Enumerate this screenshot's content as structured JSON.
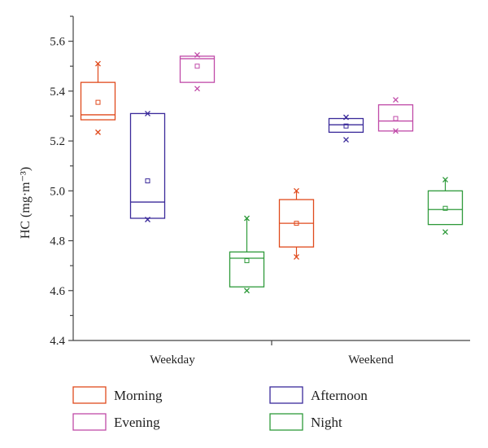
{
  "chart_data": {
    "type": "box",
    "ylabel": "HC (mg·m⁻³)",
    "ylim": [
      4.4,
      5.7
    ],
    "yticks": [
      "4.4",
      "4.6",
      "4.8",
      "5.0",
      "5.2",
      "5.4",
      "5.6"
    ],
    "categories": [
      "Weekday",
      "Weekend"
    ],
    "grid": false,
    "legend_position": "bottom",
    "series": [
      {
        "name": "Morning",
        "color": "#e04a1c",
        "boxes": [
          {
            "category": "Weekday",
            "q1": 5.285,
            "median": 5.305,
            "q3": 5.435,
            "mean": 5.355,
            "whisker_low": 5.285,
            "whisker_high": 5.51,
            "min": 5.235,
            "max": 5.51
          },
          {
            "category": "Weekend",
            "q1": 4.775,
            "median": 4.87,
            "q3": 4.965,
            "mean": 4.87,
            "whisker_low": 4.735,
            "whisker_high": 5.0,
            "min": 4.735,
            "max": 5.0
          }
        ]
      },
      {
        "name": "Afternoon",
        "color": "#3a2a9a",
        "boxes": [
          {
            "category": "Weekday",
            "q1": 4.89,
            "median": 4.955,
            "q3": 5.31,
            "mean": 5.04,
            "whisker_low": 4.89,
            "whisker_high": 5.31,
            "min": 4.885,
            "max": 5.31
          },
          {
            "category": "Weekend",
            "q1": 5.235,
            "median": 5.265,
            "q3": 5.29,
            "mean": 5.26,
            "whisker_low": 5.235,
            "whisker_high": 5.29,
            "min": 5.205,
            "max": 5.295
          }
        ]
      },
      {
        "name": "Evening",
        "color": "#c04aa8",
        "boxes": [
          {
            "category": "Weekday",
            "q1": 5.435,
            "median": 5.53,
            "q3": 5.54,
            "mean": 5.5,
            "whisker_low": 5.435,
            "whisker_high": 5.54,
            "min": 5.41,
            "max": 5.545
          },
          {
            "category": "Weekend",
            "q1": 5.24,
            "median": 5.28,
            "q3": 5.345,
            "mean": 5.29,
            "whisker_low": 5.24,
            "whisker_high": 5.345,
            "min": 5.24,
            "max": 5.365
          }
        ]
      },
      {
        "name": "Night",
        "color": "#2e9a3a",
        "boxes": [
          {
            "category": "Weekday",
            "q1": 4.615,
            "median": 4.73,
            "q3": 4.755,
            "mean": 4.72,
            "whisker_low": 4.615,
            "whisker_high": 4.89,
            "min": 4.6,
            "max": 4.89
          },
          {
            "category": "Weekend",
            "q1": 4.865,
            "median": 4.925,
            "q3": 5.0,
            "mean": 4.93,
            "whisker_low": 4.865,
            "whisker_high": 5.045,
            "min": 4.835,
            "max": 5.045
          }
        ]
      }
    ]
  }
}
